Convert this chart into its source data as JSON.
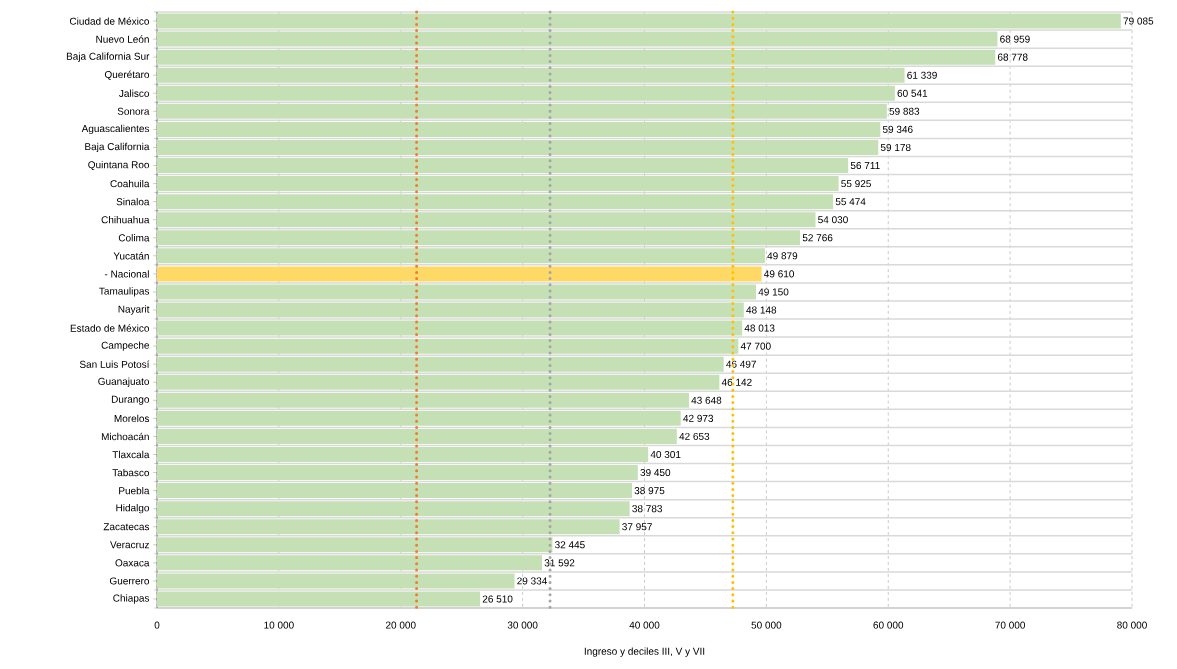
{
  "chart_data": {
    "type": "bar",
    "orientation": "horizontal",
    "xlabel": "Ingreso y deciles III,  V y VII",
    "categories": [
      "Ciudad de México",
      "Nuevo León",
      "Baja California Sur",
      "Querétaro",
      "Jalisco",
      "Sonora",
      "Aguascalientes",
      "Baja California",
      "Quintana Roo",
      "Coahuila",
      "Sinaloa",
      "Chihuahua",
      "Colima",
      "Yucatán",
      "- Nacional",
      "Tamaulipas",
      "Nayarit",
      "Estado de México",
      "Campeche",
      "San Luis Potosí",
      "Guanajuato",
      "Durango",
      "Morelos",
      "Michoacán",
      "Tlaxcala",
      "Tabasco",
      "Puebla",
      "Hidalgo",
      "Zacatecas",
      "Veracruz",
      "Oaxaca",
      "Guerrero",
      "Chiapas"
    ],
    "values": [
      79085,
      68959,
      68778,
      61339,
      60541,
      59883,
      59346,
      59178,
      56711,
      55925,
      55474,
      54030,
      52766,
      49879,
      49610,
      49150,
      48148,
      48013,
      47700,
      46497,
      46142,
      43648,
      42973,
      42653,
      40301,
      39450,
      38975,
      38783,
      37957,
      32445,
      31592,
      29334,
      26510
    ],
    "value_labels": [
      "79 085",
      "68 959",
      "68 778",
      "61 339",
      "60 541",
      "59 883",
      "59 346",
      "59 178",
      "56 711",
      "55 925",
      "55 474",
      "54 030",
      "52 766",
      "49 879",
      "49 610",
      "49 150",
      "48 148",
      "48 013",
      "47 700",
      "46 497",
      "46 142",
      "43 648",
      "42 973",
      "42 653",
      "40 301",
      "39 450",
      "38 975",
      "38 783",
      "37 957",
      "32 445",
      "31 592",
      "29 334",
      "26 510"
    ],
    "colors": [
      "#c5e0b4",
      "#c5e0b4",
      "#c5e0b4",
      "#c5e0b4",
      "#c5e0b4",
      "#c5e0b4",
      "#c5e0b4",
      "#c5e0b4",
      "#c5e0b4",
      "#c5e0b4",
      "#c5e0b4",
      "#c5e0b4",
      "#c5e0b4",
      "#c5e0b4",
      "#ffd966",
      "#c5e0b4",
      "#c5e0b4",
      "#c5e0b4",
      "#c5e0b4",
      "#c5e0b4",
      "#c5e0b4",
      "#c5e0b4",
      "#c5e0b4",
      "#c5e0b4",
      "#c5e0b4",
      "#c5e0b4",
      "#c5e0b4",
      "#c5e0b4",
      "#c5e0b4",
      "#c5e0b4",
      "#c5e0b4",
      "#c5e0b4",
      "#c5e0b4"
    ],
    "xlim": [
      0,
      80000
    ],
    "xticks": [
      0,
      {
        "value": 10000,
        "label": "10 000"
      },
      {
        "value": 20000,
        "label": "20 000"
      },
      {
        "value": 30000,
        "label": "30 000"
      },
      {
        "value": 40000,
        "label": "40 000"
      },
      {
        "value": 50000,
        "label": "50 000"
      },
      {
        "value": 60000,
        "label": "60 000"
      },
      {
        "value": 70000,
        "label": "70 000"
      },
      {
        "value": 80000,
        "label": "80 000"
      }
    ],
    "ref_lines": [
      {
        "axis": "x",
        "value": 21300,
        "color": "#ed7d31",
        "line_style": "dotted"
      },
      {
        "axis": "x",
        "value": 32250,
        "color": "#a5a5a5",
        "line_style": "dotted"
      },
      {
        "axis": "x",
        "value": 47250,
        "color": "#ffc000",
        "line_style": "dotted"
      }
    ],
    "grid": true
  }
}
